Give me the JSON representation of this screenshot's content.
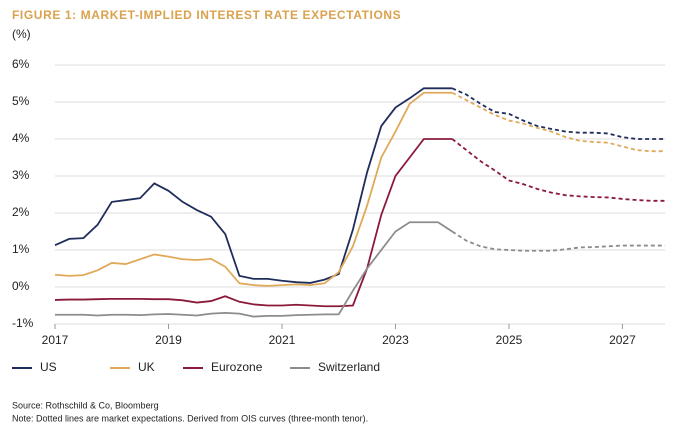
{
  "chart_data": {
    "type": "line",
    "title": "FIGURE 1: MARKET-IMPLIED INTEREST RATE EXPECTATIONS",
    "y_label": "(%)",
    "source": "Source: Rothschild & Co, Bloomberg",
    "note": "Note: Dotted lines are market expectations. Derived from OIS curves (three-month tenor).",
    "forecast_start": 2024,
    "x": [
      2017,
      2017.25,
      2017.5,
      2017.75,
      2018,
      2018.25,
      2018.5,
      2018.75,
      2019,
      2019.25,
      2019.5,
      2019.75,
      2020,
      2020.25,
      2020.5,
      2020.75,
      2021,
      2021.25,
      2021.5,
      2021.75,
      2022,
      2022.25,
      2022.5,
      2022.75,
      2023,
      2023.25,
      2023.5,
      2023.75,
      2024,
      2024.25,
      2024.5,
      2024.75,
      2025,
      2025.25,
      2025.5,
      2025.75,
      2026,
      2026.25,
      2026.5,
      2026.75,
      2027,
      2027.25,
      2027.5,
      2027.75
    ],
    "series": [
      {
        "name": "US",
        "color": "#1f2d5c",
        "values": [
          1.13,
          1.3,
          1.32,
          1.68,
          2.3,
          2.35,
          2.4,
          2.8,
          2.6,
          2.3,
          2.08,
          1.9,
          1.43,
          0.3,
          0.22,
          0.22,
          0.17,
          0.13,
          0.11,
          0.2,
          0.35,
          1.55,
          3.1,
          4.35,
          4.85,
          5.1,
          5.37,
          5.37,
          5.37,
          5.2,
          4.95,
          4.73,
          4.68,
          4.5,
          4.35,
          4.27,
          4.2,
          4.17,
          4.17,
          4.15,
          4.05,
          4.0,
          4.0,
          4.0
        ]
      },
      {
        "name": "UK",
        "color": "#e0a95a",
        "values": [
          0.33,
          0.3,
          0.32,
          0.45,
          0.65,
          0.62,
          0.75,
          0.88,
          0.82,
          0.75,
          0.73,
          0.76,
          0.55,
          0.1,
          0.05,
          0.03,
          0.05,
          0.07,
          0.05,
          0.1,
          0.4,
          1.1,
          2.2,
          3.5,
          4.2,
          4.95,
          5.25,
          5.25,
          5.25,
          5.05,
          4.85,
          4.65,
          4.5,
          4.42,
          4.3,
          4.2,
          4.05,
          3.95,
          3.92,
          3.9,
          3.8,
          3.7,
          3.67,
          3.67
        ]
      },
      {
        "name": "Eurozone",
        "color": "#8b1a3a",
        "values": [
          -0.35,
          -0.34,
          -0.34,
          -0.33,
          -0.32,
          -0.32,
          -0.32,
          -0.33,
          -0.33,
          -0.36,
          -0.42,
          -0.38,
          -0.25,
          -0.4,
          -0.47,
          -0.5,
          -0.5,
          -0.48,
          -0.5,
          -0.52,
          -0.52,
          -0.5,
          0.5,
          1.95,
          3.0,
          3.5,
          4.0,
          4.0,
          4.0,
          3.7,
          3.4,
          3.15,
          2.88,
          2.78,
          2.65,
          2.55,
          2.48,
          2.45,
          2.43,
          2.42,
          2.38,
          2.35,
          2.33,
          2.33
        ]
      },
      {
        "name": "Switzerland",
        "color": "#8c8c8c",
        "values": [
          -0.75,
          -0.75,
          -0.75,
          -0.77,
          -0.75,
          -0.75,
          -0.76,
          -0.74,
          -0.73,
          -0.75,
          -0.77,
          -0.72,
          -0.7,
          -0.72,
          -0.8,
          -0.78,
          -0.78,
          -0.76,
          -0.75,
          -0.74,
          -0.74,
          -0.1,
          0.5,
          1.0,
          1.5,
          1.75,
          1.75,
          1.75,
          1.5,
          1.25,
          1.1,
          1.02,
          1.0,
          0.98,
          0.98,
          0.98,
          1.02,
          1.07,
          1.08,
          1.1,
          1.12,
          1.12,
          1.12,
          1.12
        ]
      }
    ],
    "xlim": [
      2017,
      2027.75
    ],
    "xticks": [
      2017,
      2019,
      2021,
      2023,
      2025,
      2027
    ],
    "ylim": [
      -1,
      6
    ],
    "yticks": [
      {
        "value": -1,
        "label": "-1%"
      },
      {
        "value": 0,
        "label": "0%"
      },
      {
        "value": 1,
        "label": "1%"
      },
      {
        "value": 2,
        "label": "2%"
      },
      {
        "value": 3,
        "label": "3%"
      },
      {
        "value": 4,
        "label": "4%"
      },
      {
        "value": 5,
        "label": "5%"
      },
      {
        "value": 6,
        "label": "6%"
      }
    ],
    "grid": true
  }
}
